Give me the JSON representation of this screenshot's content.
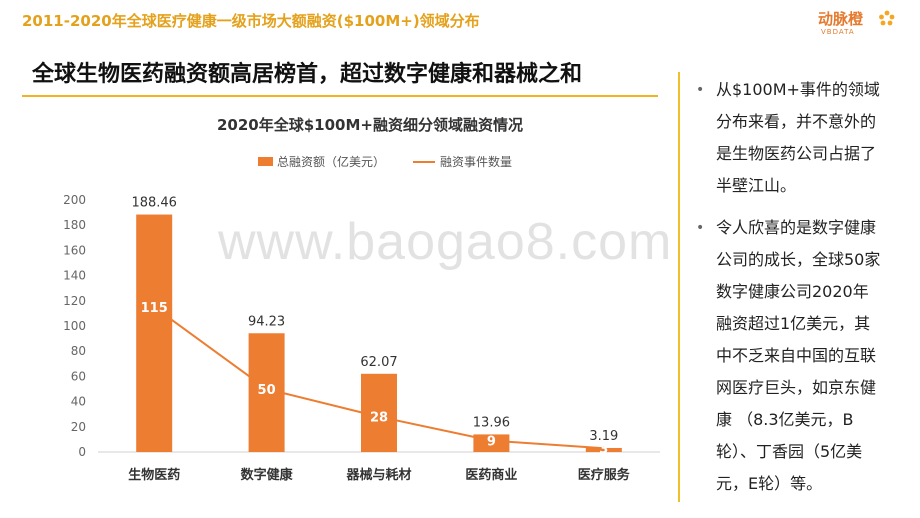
{
  "top_title": "2011-2020年全球医疗健康一级市场大额融资($100M+)领域分布",
  "logo": {
    "text": "动脉橙",
    "sub": "VBDATA",
    "mark_color": "#f5a623"
  },
  "headline": "全球生物医药融资额高居榜首，超过数字健康和器械之和",
  "watermark": "www.baogao8.com",
  "bullets": [
    "从$100M+事件的领域分布来看，并不意外的是生物医药公司占据了半壁江山。",
    "令人欣喜的是数字健康公司的成长，全球50家数字健康公司2020年融资超过1亿美元，其中不乏来自中国的互联网医疗巨头，如京东健康 （8.3亿美元，B轮）、丁香园（5亿美元，E轮）等。"
  ],
  "bullet_lines": [
    [
      "从$100M+事件的领域",
      "分布来看，并不意外的",
      "是生物医药公司占据了",
      "半壁江山。"
    ],
    [
      "令人欣喜的是数字健康",
      "公司的成长，全球50家",
      "数字健康公司2020年",
      "融资超过1亿美元，其",
      "中不乏来自中国的互联",
      "网医疗巨头，如京东健",
      "康 （8.3亿美元，B",
      "轮）、丁香园（5亿美",
      "元，E轮）等。"
    ]
  ],
  "colors": {
    "accent": "#e4a11b",
    "bar": "#ed7d31",
    "line": "#ed7d31"
  },
  "chart_data": {
    "type": "bar",
    "title": "2020年全球$100M+融资细分领域融资情况",
    "categories": [
      "生物医药",
      "数字健康",
      "器械与耗材",
      "医药商业",
      "医疗服务"
    ],
    "series": [
      {
        "name": "总融资额（亿美元）",
        "type": "bar",
        "values": [
          188.46,
          94.23,
          62.07,
          13.96,
          3.19
        ]
      },
      {
        "name": "融资事件数量",
        "type": "line",
        "values": [
          115,
          50,
          28,
          9,
          3
        ]
      }
    ],
    "ylim": [
      0,
      200
    ],
    "yticks": [
      0,
      20,
      40,
      60,
      80,
      100,
      120,
      140,
      160,
      180,
      200
    ],
    "grid": false,
    "legend_position": "top"
  }
}
